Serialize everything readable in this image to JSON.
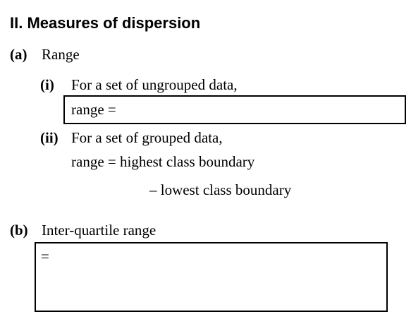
{
  "heading": "II. Measures of dispersion",
  "part_a": {
    "marker": "(a)",
    "title": "Range",
    "sub_i": {
      "marker": "(i)",
      "text": "For a set of ungrouped data,",
      "box_text": "range ="
    },
    "sub_ii": {
      "marker": "(ii)",
      "text": "For a set of grouped data,",
      "line1": "range = highest class boundary",
      "line2": "– lowest class boundary"
    }
  },
  "part_b": {
    "marker": "(b)",
    "title": "Inter-quartile range",
    "box_text": "="
  }
}
